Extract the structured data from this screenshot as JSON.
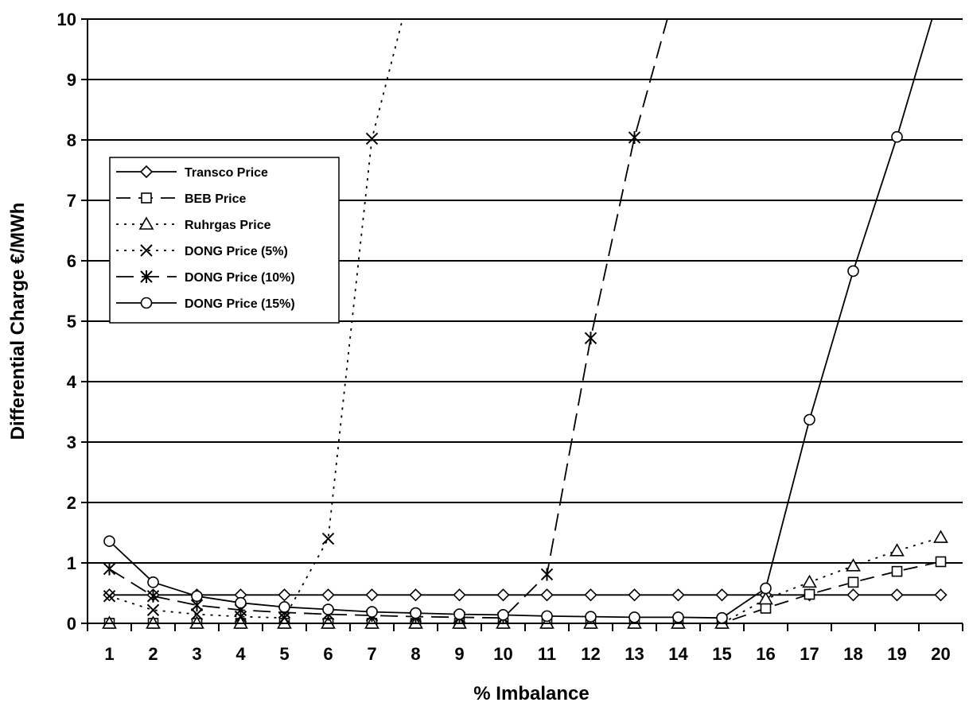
{
  "chart_data": {
    "type": "line",
    "title": "",
    "xlabel": "% Imbalance",
    "ylabel": "Differential Charge €/MWh",
    "x": [
      1,
      2,
      3,
      4,
      5,
      6,
      7,
      8,
      9,
      10,
      11,
      12,
      13,
      14,
      15,
      16,
      17,
      18,
      19,
      20
    ],
    "xlim": [
      0.5,
      20.5
    ],
    "ylim": [
      0,
      10
    ],
    "yticks": [
      0,
      1,
      2,
      3,
      4,
      5,
      6,
      7,
      8,
      9,
      10
    ],
    "grid": "horizontal",
    "legend_position": "top-left",
    "series": [
      {
        "name": "Transco Price",
        "style": "solid",
        "marker": "diamond",
        "values": [
          0.47,
          0.47,
          0.47,
          0.47,
          0.47,
          0.47,
          0.47,
          0.47,
          0.47,
          0.47,
          0.47,
          0.47,
          0.47,
          0.47,
          0.47,
          0.47,
          0.47,
          0.47,
          0.47,
          0.47
        ]
      },
      {
        "name": "BEB Price",
        "style": "dash",
        "marker": "square",
        "values": [
          0,
          0,
          0,
          0,
          0,
          0,
          0,
          0,
          0,
          0,
          0,
          0,
          0,
          0,
          0,
          0.25,
          0.48,
          0.68,
          0.86,
          1.02
        ]
      },
      {
        "name": "Ruhrgas Price",
        "style": "dot",
        "marker": "triangle",
        "values": [
          0,
          0,
          0,
          0,
          0,
          0,
          0,
          0,
          0,
          0,
          0,
          0,
          0,
          0,
          0,
          0.4,
          0.68,
          0.95,
          1.2,
          1.42
        ]
      },
      {
        "name": "DONG Price (5%)",
        "style": "dot",
        "marker": "x",
        "values": [
          0.45,
          0.22,
          0.15,
          0.11,
          0.09,
          1.4,
          8.02,
          null,
          null,
          null,
          null,
          null,
          null,
          null,
          null,
          null,
          null,
          null,
          null,
          null
        ],
        "continues_above_axis_to_x": 7.7
      },
      {
        "name": "DONG Price (10%)",
        "style": "longdash",
        "marker": "star",
        "values": [
          0.9,
          0.45,
          0.3,
          0.22,
          0.18,
          0.15,
          0.13,
          0.11,
          0.1,
          0.09,
          0.81,
          4.72,
          8.04,
          null,
          null,
          null,
          null,
          null,
          null,
          null
        ],
        "continues_above_axis_to_x": 13.75
      },
      {
        "name": "DONG Price (15%)",
        "style": "solid",
        "marker": "circle",
        "values": [
          1.36,
          0.68,
          0.45,
          0.34,
          0.27,
          0.23,
          0.19,
          0.17,
          0.15,
          0.14,
          0.12,
          0.11,
          0.1,
          0.1,
          0.09,
          0.58,
          3.37,
          5.83,
          8.05,
          null
        ],
        "continues_above_axis_to_x": 19.8
      }
    ]
  }
}
